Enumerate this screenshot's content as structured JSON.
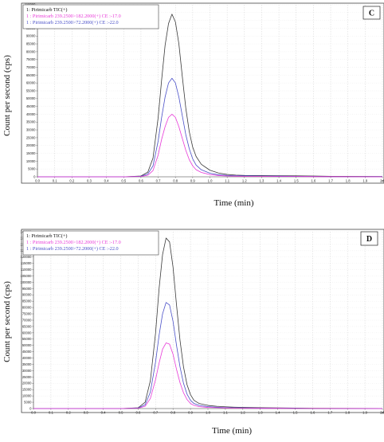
{
  "chart_data": [
    {
      "type": "line",
      "panel_label": "C",
      "xlabel": "Time (min)",
      "ylabel": "Count per second (cps)",
      "x_unit": "min",
      "xlim": [
        0.0,
        2.0
      ],
      "ylim": [
        0,
        110000
      ],
      "ytick_step": 5000,
      "xticks": [
        0.0,
        0.1,
        0.2,
        0.3,
        0.4,
        0.5,
        0.6,
        0.7,
        0.8,
        0.9,
        1.0,
        1.1,
        1.2,
        1.3,
        1.4,
        1.5,
        1.6,
        1.7,
        1.8,
        1.9,
        2.0
      ],
      "xtick_labels": [
        "0.0",
        "0.1",
        "0.2",
        "0.3",
        "0.4",
        "0.5",
        "0.6",
        "0.7",
        "0.8",
        "0.9",
        "1.0",
        "1.1",
        "1.2",
        "1.3",
        "1.4",
        "1.5",
        "1.6",
        "1.7",
        "1.8",
        "1.9",
        "2.0"
      ],
      "grid": true,
      "legend_position": "top-left",
      "series": [
        {
          "name": "1: Pirimicarb TIC(+)",
          "color": "#3a3a3a",
          "x": [
            0.0,
            0.5,
            0.6,
            0.64,
            0.67,
            0.7,
            0.72,
            0.74,
            0.76,
            0.78,
            0.8,
            0.82,
            0.84,
            0.86,
            0.88,
            0.9,
            0.92,
            0.95,
            1.0,
            1.05,
            1.1,
            1.15,
            1.2,
            1.3,
            1.4,
            1.5,
            1.6,
            1.7,
            2.0
          ],
          "y": [
            0,
            0,
            500,
            3000,
            12000,
            38000,
            62000,
            84000,
            98000,
            104000,
            99000,
            85000,
            64000,
            44000,
            29000,
            19000,
            13000,
            8000,
            4200,
            2400,
            1500,
            1100,
            900,
            800,
            700,
            600,
            500,
            300,
            200
          ]
        },
        {
          "name": "1 : Pirimicarb 239.2500>72.2000(+) CE :-22.0",
          "color": "#4a50c8",
          "x": [
            0.0,
            0.5,
            0.6,
            0.64,
            0.67,
            0.7,
            0.72,
            0.74,
            0.76,
            0.78,
            0.8,
            0.82,
            0.84,
            0.86,
            0.88,
            0.9,
            0.92,
            0.95,
            1.0,
            1.05,
            1.1,
            1.15,
            1.2,
            1.3,
            1.4,
            1.5,
            1.6,
            1.7,
            2.0
          ],
          "y": [
            0,
            0,
            300,
            1800,
            7000,
            23000,
            38000,
            51000,
            60000,
            63000,
            60000,
            51000,
            39000,
            27000,
            18000,
            11500,
            7500,
            4500,
            2300,
            1300,
            900,
            700,
            600,
            500,
            400,
            300,
            200,
            100,
            100
          ]
        },
        {
          "name": "1 : Pirimicarb 239.2500>182.2000(+) CE :-17.0",
          "color": "#e83ad8",
          "x": [
            0.0,
            0.5,
            0.6,
            0.64,
            0.67,
            0.7,
            0.72,
            0.74,
            0.76,
            0.78,
            0.8,
            0.82,
            0.84,
            0.86,
            0.88,
            0.9,
            0.92,
            0.95,
            1.0,
            1.05,
            1.1,
            1.15,
            1.2,
            1.3,
            1.4,
            1.5,
            1.6,
            1.7,
            2.0
          ],
          "y": [
            0,
            0,
            200,
            1000,
            4000,
            14000,
            24000,
            32000,
            38000,
            40000,
            38000,
            32000,
            24500,
            17000,
            11000,
            7000,
            4500,
            2800,
            1400,
            800,
            500,
            400,
            300,
            300,
            200,
            200,
            100,
            100,
            0
          ]
        }
      ]
    },
    {
      "type": "line",
      "panel_label": "D",
      "xlabel": "Time (min)",
      "ylabel": "Count per second (cps)",
      "x_unit": "min",
      "xlim": [
        0.0,
        2.0
      ],
      "ylim": [
        0,
        140000
      ],
      "ytick_step": 5000,
      "xticks": [
        0.0,
        0.1,
        0.2,
        0.3,
        0.4,
        0.5,
        0.6,
        0.7,
        0.8,
        0.9,
        1.0,
        1.1,
        1.2,
        1.3,
        1.4,
        1.5,
        1.6,
        1.7,
        1.8,
        1.9,
        2.0
      ],
      "xtick_labels": [
        "0.0",
        "0.1",
        "0.2",
        "0.3",
        "0.4",
        "0.5",
        "0.6",
        "0.7",
        "0.8",
        "0.9",
        "1.0",
        "1.1",
        "1.2",
        "1.3",
        "1.4",
        "1.5",
        "1.6",
        "1.7",
        "1.8",
        "1.9",
        "2.0"
      ],
      "grid": true,
      "legend_position": "top-left",
      "series": [
        {
          "name": "1: Pirimicarb TIC(+)",
          "color": "#3a3a3a",
          "x": [
            0.0,
            0.5,
            0.6,
            0.64,
            0.67,
            0.7,
            0.72,
            0.74,
            0.76,
            0.78,
            0.8,
            0.82,
            0.84,
            0.86,
            0.88,
            0.9,
            0.92,
            0.95,
            1.0,
            1.05,
            1.1,
            1.15,
            1.2,
            1.3,
            1.4,
            1.5,
            1.6,
            2.0
          ],
          "y": [
            0,
            0,
            600,
            5000,
            22000,
            60000,
            95000,
            122000,
            135000,
            132000,
            112000,
            82000,
            54000,
            33000,
            19000,
            11000,
            6500,
            4000,
            2500,
            1800,
            1400,
            1100,
            900,
            700,
            500,
            400,
            200,
            100
          ]
        },
        {
          "name": "1 : Pirimicarb 239.2500>72.2000(+) CE :-22.0",
          "color": "#4a50c8",
          "x": [
            0.0,
            0.5,
            0.6,
            0.64,
            0.67,
            0.7,
            0.72,
            0.74,
            0.76,
            0.78,
            0.8,
            0.82,
            0.84,
            0.86,
            0.88,
            0.9,
            0.92,
            0.95,
            1.0,
            1.05,
            1.1,
            1.15,
            1.2,
            1.3,
            1.4,
            1.5,
            1.6,
            2.0
          ],
          "y": [
            0,
            0,
            400,
            3000,
            13000,
            37000,
            58000,
            75000,
            84000,
            82000,
            69000,
            50000,
            33000,
            20000,
            11500,
            6500,
            4000,
            2500,
            1500,
            1100,
            800,
            600,
            500,
            400,
            300,
            200,
            100,
            0
          ]
        },
        {
          "name": "1 : Pirimicarb 239.2500>182.2000(+) CE :-17.0",
          "color": "#e83ad8",
          "x": [
            0.0,
            0.5,
            0.6,
            0.64,
            0.67,
            0.7,
            0.72,
            0.74,
            0.76,
            0.78,
            0.8,
            0.82,
            0.84,
            0.86,
            0.88,
            0.9,
            0.92,
            0.95,
            1.0,
            1.05,
            1.1,
            1.15,
            1.2,
            1.3,
            1.4,
            1.5,
            1.6,
            2.0
          ],
          "y": [
            0,
            0,
            250,
            1800,
            8000,
            23000,
            36000,
            47000,
            52000,
            51000,
            43000,
            31000,
            20500,
            12500,
            7200,
            4000,
            2500,
            1500,
            900,
            700,
            500,
            400,
            300,
            200,
            200,
            100,
            100,
            0
          ]
        }
      ]
    }
  ]
}
